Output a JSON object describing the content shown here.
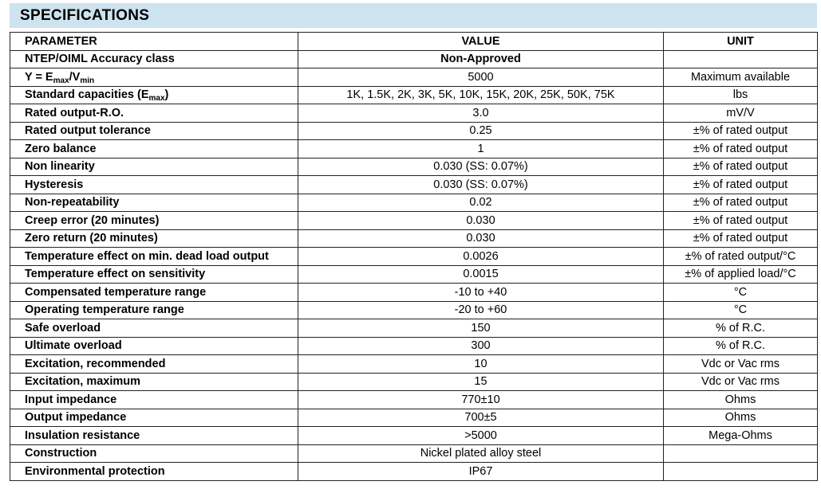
{
  "title": "SPECIFICATIONS",
  "headers": {
    "parameter": "PARAMETER",
    "value": "VALUE",
    "unit": "UNIT"
  },
  "rows": [
    {
      "parameter": [
        {
          "t": "NTEP/OIML Accuracy class"
        }
      ],
      "value": "Non-Approved",
      "value_bold": true,
      "unit": ""
    },
    {
      "parameter": [
        {
          "t": "Y = E"
        },
        {
          "t": "max",
          "sub": true
        },
        {
          "t": "/V"
        },
        {
          "t": "min",
          "sub": true
        }
      ],
      "value": "5000",
      "unit": "Maximum available"
    },
    {
      "parameter": [
        {
          "t": "Standard capacities (E"
        },
        {
          "t": "max",
          "sub": true
        },
        {
          "t": ")"
        }
      ],
      "value": "1K, 1.5K, 2K, 3K, 5K, 10K, 15K, 20K, 25K, 50K, 75K",
      "unit": "lbs"
    },
    {
      "parameter": [
        {
          "t": "Rated output-R.O."
        }
      ],
      "value": "3.0",
      "unit": "mV/V"
    },
    {
      "parameter": [
        {
          "t": "Rated output tolerance"
        }
      ],
      "value": "0.25",
      "unit": "±% of rated output"
    },
    {
      "parameter": [
        {
          "t": "Zero balance"
        }
      ],
      "value": "1",
      "unit": "±% of rated output"
    },
    {
      "parameter": [
        {
          "t": "Non linearity"
        }
      ],
      "value": "0.030 (SS: 0.07%)",
      "unit": "±% of rated output"
    },
    {
      "parameter": [
        {
          "t": "Hysteresis"
        }
      ],
      "value": "0.030 (SS: 0.07%)",
      "unit": "±% of rated output"
    },
    {
      "parameter": [
        {
          "t": "Non-repeatability"
        }
      ],
      "value": "0.02",
      "unit": "±% of rated output"
    },
    {
      "parameter": [
        {
          "t": "Creep error (20 minutes)"
        }
      ],
      "value": "0.030",
      "unit": "±% of rated output"
    },
    {
      "parameter": [
        {
          "t": "Zero return (20 minutes)"
        }
      ],
      "value": "0.030",
      "unit": "±% of rated output"
    },
    {
      "parameter": [
        {
          "t": "Temperature effect on min. dead load output"
        }
      ],
      "value": "0.0026",
      "unit": "±% of rated output/°C"
    },
    {
      "parameter": [
        {
          "t": "Temperature effect on sensitivity"
        }
      ],
      "value": "0.0015",
      "unit": "±% of applied load/°C"
    },
    {
      "parameter": [
        {
          "t": "Compensated temperature range"
        }
      ],
      "value": "-10 to +40",
      "unit": "°C"
    },
    {
      "parameter": [
        {
          "t": "Operating temperature range"
        }
      ],
      "value": "-20 to +60",
      "unit": "°C"
    },
    {
      "parameter": [
        {
          "t": "Safe overload"
        }
      ],
      "value": "150",
      "unit": "% of R.C."
    },
    {
      "parameter": [
        {
          "t": "Ultimate overload"
        }
      ],
      "value": "300",
      "unit": "% of R.C."
    },
    {
      "parameter": [
        {
          "t": "Excitation, recommended"
        }
      ],
      "value": "10",
      "unit": "Vdc or Vac rms"
    },
    {
      "parameter": [
        {
          "t": "Excitation, maximum"
        }
      ],
      "value": "15",
      "unit": "Vdc or Vac rms"
    },
    {
      "parameter": [
        {
          "t": "Input impedance"
        }
      ],
      "value": "770±10",
      "unit": "Ohms"
    },
    {
      "parameter": [
        {
          "t": "Output impedance"
        }
      ],
      "value": "700±5",
      "unit": "Ohms"
    },
    {
      "parameter": [
        {
          "t": "Insulation resistance"
        }
      ],
      "value": ">5000",
      "unit": "Mega-Ohms"
    },
    {
      "parameter": [
        {
          "t": "Construction"
        }
      ],
      "value": "Nickel plated alloy steel",
      "unit": ""
    },
    {
      "parameter": [
        {
          "t": "Environmental protection"
        }
      ],
      "value": "IP67",
      "unit": ""
    }
  ]
}
